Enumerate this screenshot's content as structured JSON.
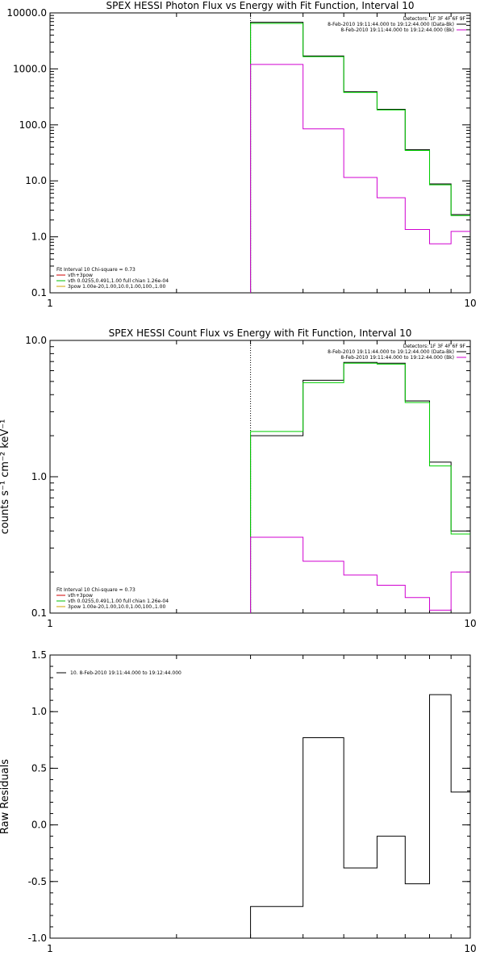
{
  "chart_data": [
    {
      "type": "step",
      "title": "SPEX HESSI Photon Flux vs Energy with Fit Function, Interval 10",
      "xscale": "log",
      "yscale": "log",
      "xlim": [
        1,
        10
      ],
      "ylim": [
        0.1,
        10000
      ],
      "x_ticks": [
        1,
        10
      ],
      "x_tick_labels": [
        "1",
        "10"
      ],
      "y_ticks": [
        0.1,
        1,
        10,
        100,
        1000,
        10000
      ],
      "y_tick_labels": [
        "0.1",
        "1.0",
        "10.0",
        "100.0",
        "1000.0",
        "10000.0"
      ],
      "xlabel": "",
      "ylabel": "",
      "vline_x": 3,
      "bin_edges": [
        3,
        4,
        5,
        6,
        7,
        8,
        9,
        10
      ],
      "series": [
        {
          "color": "#000000",
          "values": [
            6800,
            1700,
            390,
            190,
            36,
            8.8,
            2.5
          ]
        },
        {
          "color": "#00d000",
          "values": [
            6500,
            1650,
            380,
            185,
            35,
            8.5,
            2.4
          ]
        },
        {
          "color": "#d000d0",
          "values": [
            1200,
            85,
            11.5,
            5.0,
            1.35,
            0.75,
            1.25
          ]
        }
      ],
      "legend_top_right": {
        "lines": [
          {
            "text": "Detectors: 1F 3F 4F 6F 9F",
            "color": null
          },
          {
            "text": "8-Feb-2010 19:11:44.000 to 19:12:44.000 (Data-Bk)",
            "color": "#000000"
          },
          {
            "text": "8-Feb-2010 19:11:44.000 to 19:12:44.000 (Bk)",
            "color": "#d000d0"
          }
        ]
      },
      "legend_bottom_left": {
        "lines": [
          {
            "text": "Fit Interval 10   Chi-square = 0.73",
            "color": null
          },
          {
            "text": "vth+3pow",
            "color": "#d00000"
          },
          {
            "text": "vth 0.0255,0.491,1.00  full chian 1.26e-04",
            "color": "#00c000"
          },
          {
            "text": "3pow 1.00e-20,1.00,10.0,1.00,100.,1.00",
            "color": "#d0a000"
          }
        ]
      }
    },
    {
      "type": "step",
      "title": "SPEX HESSI Count Flux vs Energy with Fit Function, Interval 10",
      "xscale": "log",
      "yscale": "log",
      "xlim": [
        1,
        10
      ],
      "ylim": [
        0.1,
        10
      ],
      "x_ticks": [
        1,
        10
      ],
      "x_tick_labels": [
        "1",
        "10"
      ],
      "y_ticks": [
        0.1,
        1,
        10
      ],
      "y_tick_labels": [
        "0.1",
        "1.0",
        "10.0"
      ],
      "xlabel": "",
      "ylabel": "counts s⁻¹ cm⁻² keV⁻¹",
      "vline_x": 3,
      "bin_edges": [
        3,
        4,
        5,
        6,
        7,
        8,
        9,
        10
      ],
      "series": [
        {
          "color": "#000000",
          "values": [
            2.0,
            5.1,
            6.9,
            6.8,
            3.6,
            1.28,
            0.4
          ]
        },
        {
          "color": "#00d000",
          "values": [
            2.15,
            4.9,
            6.8,
            6.7,
            3.5,
            1.2,
            0.38
          ]
        },
        {
          "color": "#d000d0",
          "values": [
            0.36,
            0.24,
            0.19,
            0.16,
            0.13,
            0.105,
            0.2
          ]
        }
      ],
      "legend_top_right": {
        "lines": [
          {
            "text": "Detectors: 1F 3F 4F 6F 9F",
            "color": null
          },
          {
            "text": "8-Feb-2010 19:11:44.000 to 19:12:44.000 (Data-Bk)",
            "color": "#000000"
          },
          {
            "text": "8-Feb-2010 19:11:44.000 to 19:12:44.000 (Bk)",
            "color": "#d000d0"
          }
        ]
      },
      "legend_bottom_left": {
        "lines": [
          {
            "text": "Fit Interval 10   Chi-square = 0.73",
            "color": null
          },
          {
            "text": "vth+3pow",
            "color": "#d00000"
          },
          {
            "text": "vth 0.0255,0.491,1.00  full chian 1.26e-04",
            "color": "#00c000"
          },
          {
            "text": "3pow 1.00e-20,1.00,10.0,1.00,100.,1.00",
            "color": "#d0a000"
          }
        ]
      }
    },
    {
      "type": "step",
      "title": "",
      "xscale": "log",
      "yscale": "linear",
      "xlim": [
        1,
        10
      ],
      "ylim": [
        -1.0,
        1.5
      ],
      "x_ticks": [
        1,
        10
      ],
      "x_tick_labels": [
        "1",
        "10"
      ],
      "y_ticks": [
        -1.0,
        -0.5,
        0.0,
        0.5,
        1.0,
        1.5
      ],
      "y_tick_labels": [
        "-1.0",
        "-0.5",
        "0.0",
        "0.5",
        "1.0",
        "1.5"
      ],
      "xlabel": "",
      "ylabel": "Raw Residuals",
      "bin_edges": [
        3,
        4,
        5,
        6,
        7,
        8,
        9,
        10
      ],
      "series": [
        {
          "name": "10.  8-Feb-2010 19:11:44.000 to 19:12:44.000",
          "color": "#000000",
          "values": [
            -0.72,
            0.77,
            -0.38,
            -0.1,
            -0.52,
            1.15,
            0.29
          ]
        }
      ],
      "legend_top_left": {
        "lines": [
          {
            "text": "10.  8-Feb-2010 19:11:44.000 to 19:12:44.000",
            "color": "#000000"
          }
        ]
      }
    }
  ]
}
